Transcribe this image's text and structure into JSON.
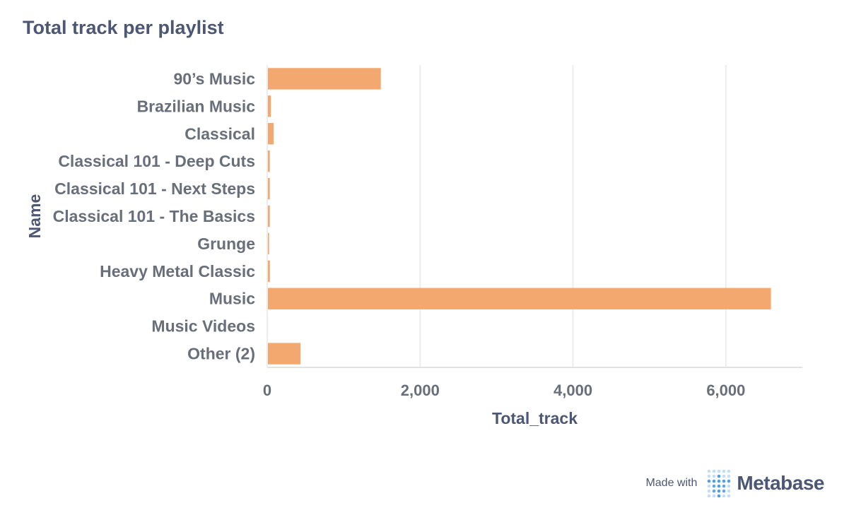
{
  "header": {
    "title": "Total track per playlist"
  },
  "chart_data": {
    "type": "bar",
    "orientation": "horizontal",
    "title": "Total track per playlist",
    "xlabel": "Total_track",
    "ylabel": "Name",
    "categories": [
      "90’s Music",
      "Brazilian Music",
      "Classical",
      "Classical 101 - Deep Cuts",
      "Classical 101 - Next Steps",
      "Classical 101 - The Basics",
      "Grunge",
      "Heavy Metal Classic",
      "Music",
      "Music Videos",
      "Other (2)"
    ],
    "values": [
      1477,
      39,
      75,
      25,
      25,
      25,
      15,
      26,
      6580,
      1,
      426
    ],
    "xlim": [
      0,
      7000
    ],
    "xticks": [
      0,
      2000,
      4000,
      6000
    ],
    "xtick_labels": [
      "0",
      "2,000",
      "4,000",
      "6,000"
    ],
    "grid": true,
    "bar_color": "#f2a86f",
    "gridline_color": "#ededed"
  },
  "footer": {
    "made_with": "Made with",
    "brand": "Metabase",
    "logo_icon": "metabase-logo-icon",
    "logo_color": "#509ee3"
  }
}
